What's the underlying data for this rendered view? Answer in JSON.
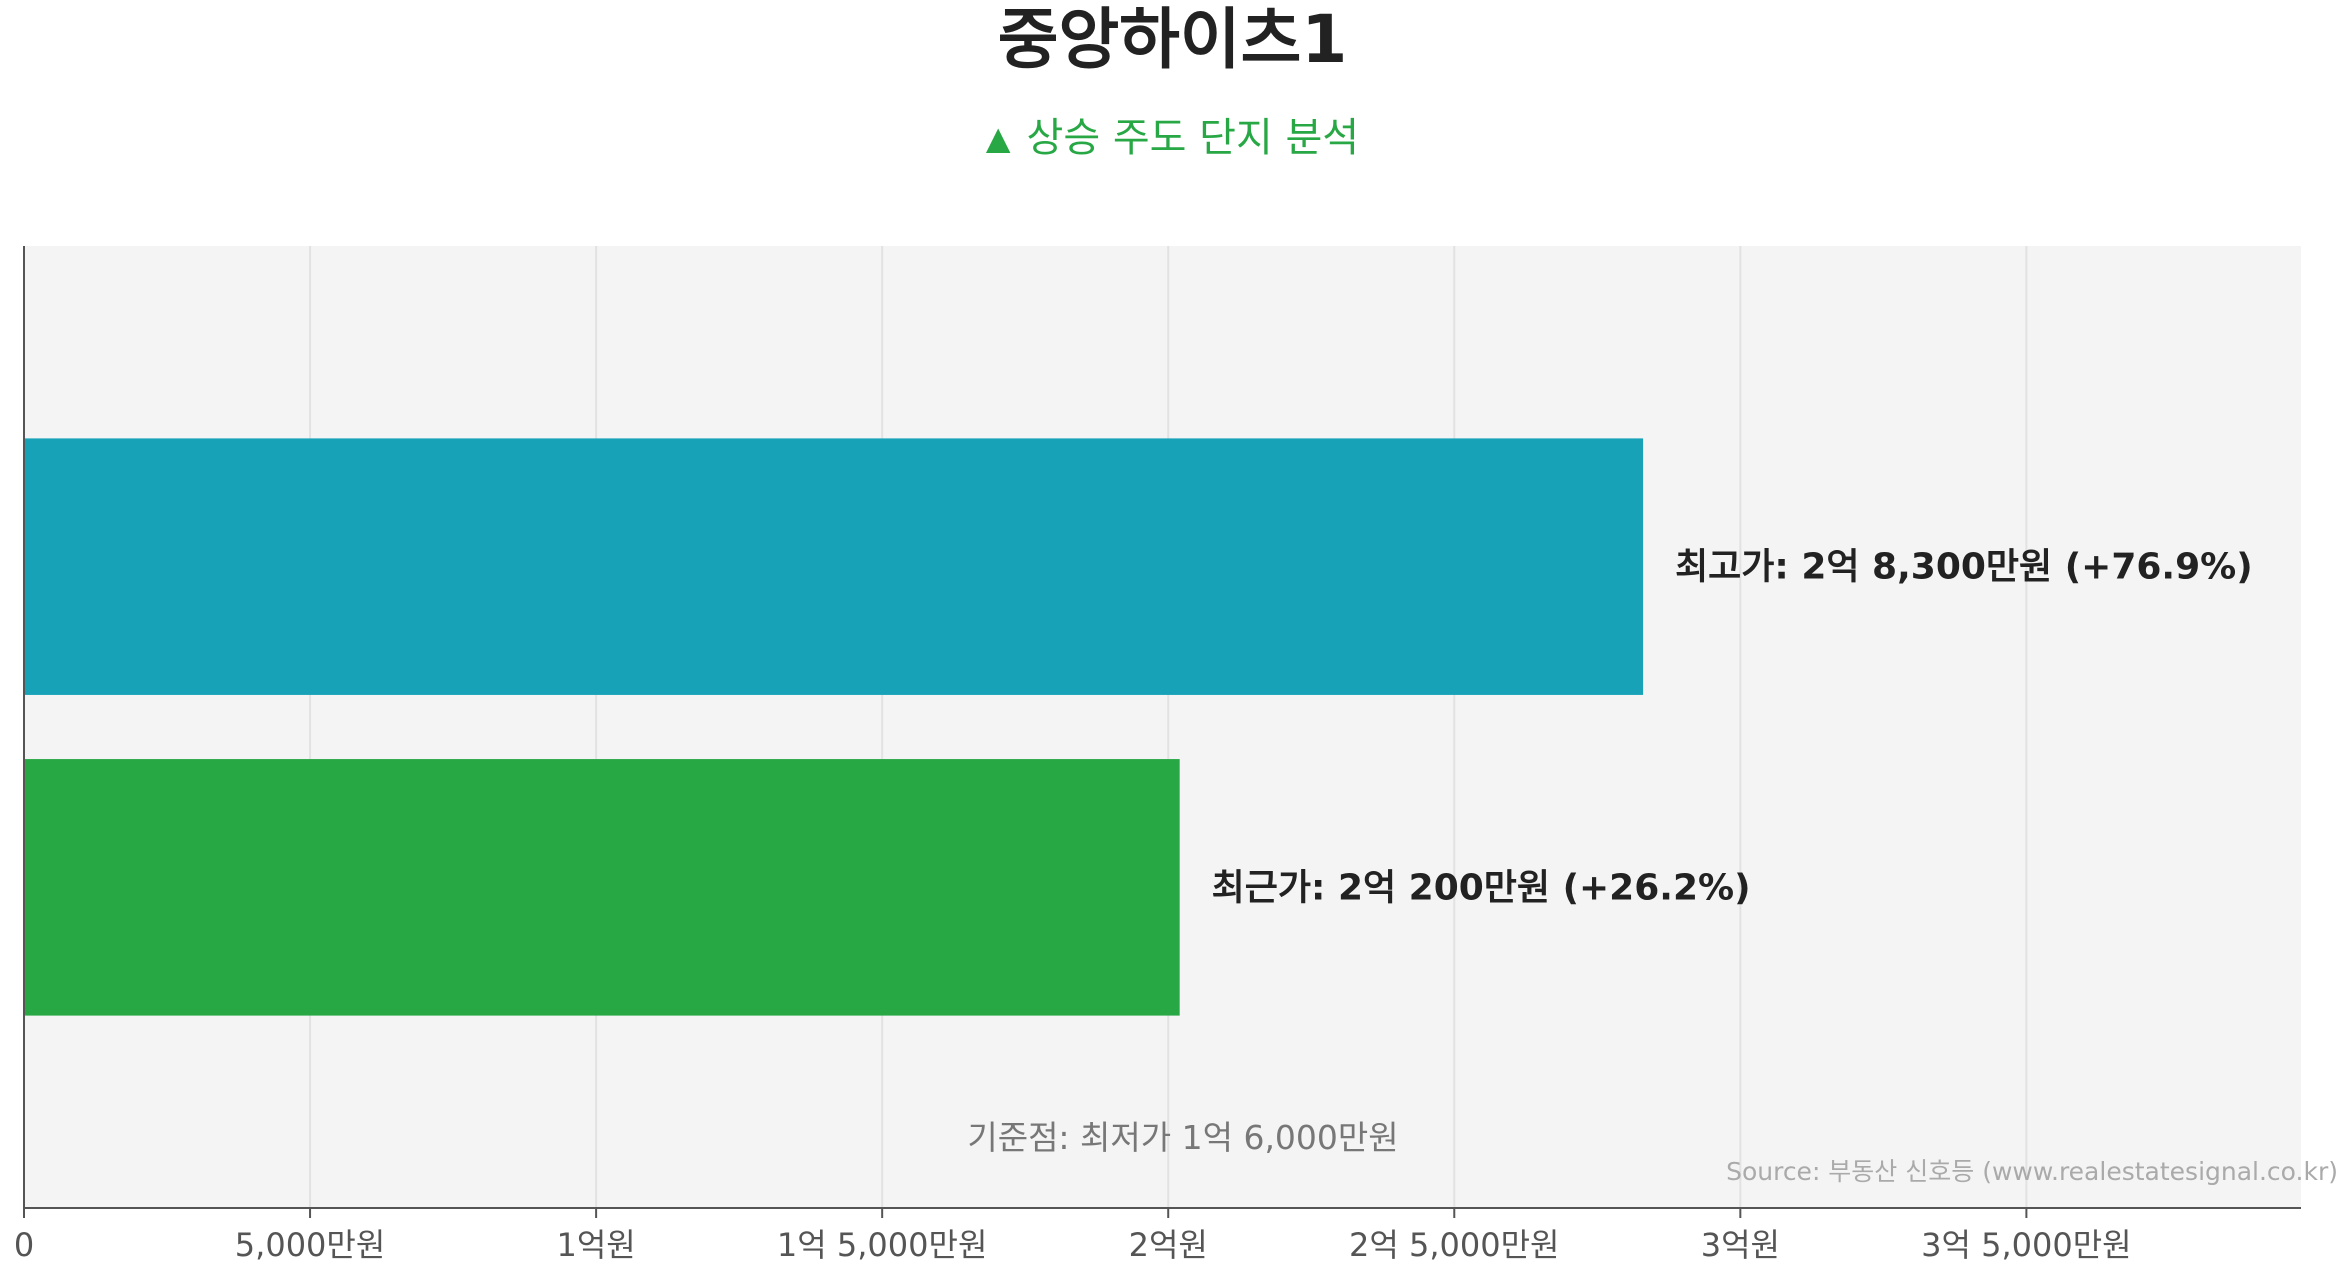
{
  "title": "중앙하이츠1",
  "subtitle": {
    "icon": "triangle-up-icon",
    "text": "상승 주도 단지 분석",
    "color": "#28a745"
  },
  "chart_data": {
    "type": "bar",
    "orientation": "horizontal",
    "categories": [
      "최고가",
      "최근가"
    ],
    "values": [
      28300,
      20200
    ],
    "unit": "만원",
    "colors": [
      "#17a2b8",
      "#28a745"
    ],
    "data_labels": [
      "최고가: 2억 8,300만원 (+76.9%)",
      "최근가: 2억 200만원 (+26.2%)"
    ],
    "baseline_label": "기준점: 최저가 1억 6,000만원",
    "baseline_value": 16000,
    "xlim": [
      0,
      39800
    ],
    "x_ticks": [
      0,
      5000,
      10000,
      15000,
      20000,
      25000,
      30000,
      35000
    ],
    "x_tick_labels": [
      "0",
      "5,000만원",
      "1억원",
      "1억 5,000만원",
      "2억원",
      "2억 5,000만원",
      "3억원",
      "3억 5,000만원"
    ],
    "grid": true,
    "plot_background": "#f4f4f4"
  },
  "source": "Source: 부동산 신호등 (www.realestatesignal.co.kr)"
}
